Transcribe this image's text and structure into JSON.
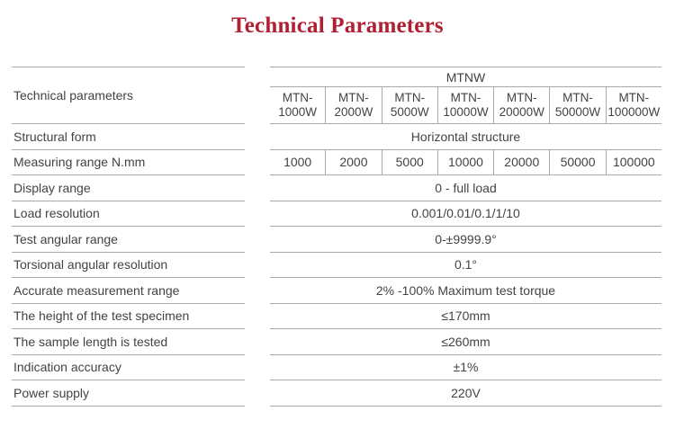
{
  "title": "Technical Parameters",
  "colors": {
    "title": "#b02033",
    "text": "#434343",
    "line": "#a9a9a9"
  },
  "table": {
    "left_header": "Technical parameters",
    "group_header": "MTNW",
    "models": [
      "MTN-\n1000W",
      "MTN-\n2000W",
      "MTN-\n5000W",
      "MTN-\n10000W",
      "MTN-\n20000W",
      "MTN-\n50000W",
      "MTN-\n100000W"
    ],
    "rows": [
      {
        "label": "Structural form",
        "value": "Horizontal structure"
      },
      {
        "label": "Measuring range N.mm",
        "values": [
          "1000",
          "2000",
          "5000",
          "10000",
          "20000",
          "50000",
          "100000"
        ]
      },
      {
        "label": "Display range",
        "value": "0 - full load"
      },
      {
        "label": "Load resolution",
        "value": "0.001/0.01/0.1/1/10"
      },
      {
        "label": "Test angular range",
        "value": "0-±9999.9°"
      },
      {
        "label": "Torsional angular resolution",
        "value": "0.1°"
      },
      {
        "label": "Accurate measurement range",
        "value": "2% -100% Maximum test torque"
      },
      {
        "label": "The height of the test specimen",
        "value": "≤170mm"
      },
      {
        "label": "The sample length is tested",
        "value": "≤260mm"
      },
      {
        "label": "Indication accuracy",
        "value": "±1%"
      },
      {
        "label": "Power supply",
        "value": "220V"
      }
    ]
  }
}
